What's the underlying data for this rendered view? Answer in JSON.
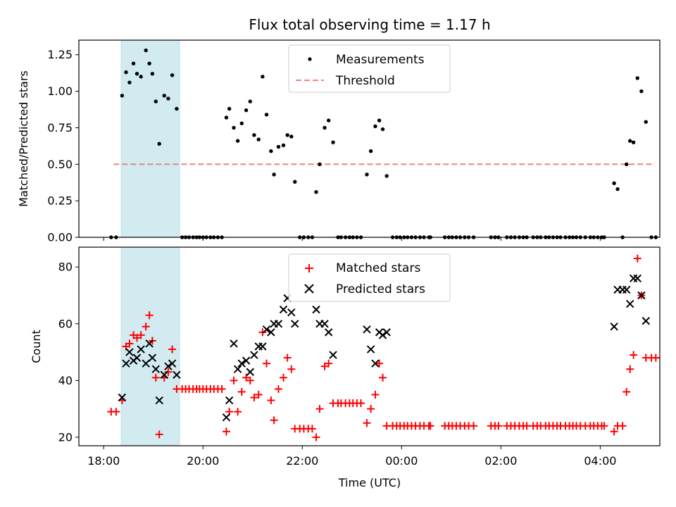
{
  "chart_data": {
    "title": "Flux total observing time = 1.17 h",
    "xlabel": "Time (UTC)",
    "x_tick_labels": [
      "18:00",
      "20:00",
      "22:00",
      "00:00",
      "02:00",
      "04:00"
    ],
    "x_range_hours": [
      17.5,
      29.2
    ],
    "shaded_region_hours": [
      18.35,
      19.53
    ],
    "shaded_color": "#d2ebf1",
    "top": {
      "type": "scatter",
      "ylabel": "Matched/Predicted stars",
      "ylim": [
        0,
        1.35
      ],
      "y_ticks": [
        "0.00",
        "0.25",
        "0.50",
        "0.75",
        "1.00",
        "1.25"
      ],
      "legend": [
        "Measurements",
        "Threshold"
      ],
      "threshold": {
        "value": 0.5,
        "x_range_hours": [
          18.2,
          29.1
        ],
        "color": "#f08080"
      },
      "measurements": [
        [
          18.15,
          0
        ],
        [
          18.25,
          0
        ],
        [
          18.37,
          0.97
        ],
        [
          18.45,
          1.13
        ],
        [
          18.52,
          1.06
        ],
        [
          18.6,
          1.19
        ],
        [
          18.67,
          1.12
        ],
        [
          18.75,
          1.1
        ],
        [
          18.85,
          1.28
        ],
        [
          18.92,
          1.19
        ],
        [
          18.98,
          1.12
        ],
        [
          19.05,
          0.93
        ],
        [
          19.12,
          0.64
        ],
        [
          19.22,
          0.97
        ],
        [
          19.3,
          0.95
        ],
        [
          19.38,
          1.11
        ],
        [
          19.47,
          0.88
        ],
        [
          19.58,
          0
        ],
        [
          19.65,
          0
        ],
        [
          19.72,
          0
        ],
        [
          19.8,
          0
        ],
        [
          19.87,
          0
        ],
        [
          19.93,
          0
        ],
        [
          20.0,
          0
        ],
        [
          20.07,
          0
        ],
        [
          20.15,
          0
        ],
        [
          20.22,
          0
        ],
        [
          20.3,
          0
        ],
        [
          20.38,
          0
        ],
        [
          20.47,
          0.82
        ],
        [
          20.53,
          0.88
        ],
        [
          20.62,
          0.75
        ],
        [
          20.7,
          0.66
        ],
        [
          20.78,
          0.78
        ],
        [
          20.87,
          0.87
        ],
        [
          20.95,
          0.93
        ],
        [
          21.03,
          0.7
        ],
        [
          21.12,
          0.67
        ],
        [
          21.2,
          1.1
        ],
        [
          21.28,
          0.84
        ],
        [
          21.37,
          0.59
        ],
        [
          21.43,
          0.43
        ],
        [
          21.52,
          0.62
        ],
        [
          21.62,
          0.63
        ],
        [
          21.7,
          0.7
        ],
        [
          21.78,
          0.69
        ],
        [
          21.85,
          0.38
        ],
        [
          21.95,
          0
        ],
        [
          22.03,
          0
        ],
        [
          22.12,
          0
        ],
        [
          22.2,
          0
        ],
        [
          22.28,
          0.31
        ],
        [
          22.35,
          0.5
        ],
        [
          22.45,
          0.75
        ],
        [
          22.53,
          0.8
        ],
        [
          22.62,
          0.65
        ],
        [
          22.72,
          0
        ],
        [
          22.78,
          0
        ],
        [
          22.87,
          0
        ],
        [
          22.95,
          0
        ],
        [
          23.02,
          0
        ],
        [
          23.1,
          0
        ],
        [
          23.18,
          0
        ],
        [
          23.3,
          0.43
        ],
        [
          23.38,
          0.59
        ],
        [
          23.47,
          0.76
        ],
        [
          23.55,
          0.8
        ],
        [
          23.62,
          0.74
        ],
        [
          23.7,
          0.42
        ],
        [
          23.82,
          0
        ],
        [
          23.9,
          0
        ],
        [
          23.97,
          0
        ],
        [
          24.05,
          0
        ],
        [
          24.12,
          0
        ],
        [
          24.2,
          0
        ],
        [
          24.28,
          0
        ],
        [
          24.37,
          0
        ],
        [
          24.45,
          0
        ],
        [
          24.55,
          0
        ],
        [
          24.58,
          0
        ],
        [
          24.87,
          0
        ],
        [
          24.95,
          0
        ],
        [
          25.02,
          0
        ],
        [
          25.1,
          0
        ],
        [
          25.18,
          0
        ],
        [
          25.27,
          0
        ],
        [
          25.35,
          0
        ],
        [
          25.45,
          0
        ],
        [
          25.8,
          0
        ],
        [
          25.88,
          0
        ],
        [
          25.95,
          0
        ],
        [
          26.12,
          0
        ],
        [
          26.2,
          0
        ],
        [
          26.28,
          0
        ],
        [
          26.37,
          0
        ],
        [
          26.45,
          0
        ],
        [
          26.52,
          0
        ],
        [
          26.65,
          0
        ],
        [
          26.73,
          0
        ],
        [
          26.8,
          0
        ],
        [
          26.9,
          0
        ],
        [
          26.97,
          0
        ],
        [
          27.05,
          0
        ],
        [
          27.13,
          0
        ],
        [
          27.2,
          0
        ],
        [
          27.3,
          0
        ],
        [
          27.38,
          0
        ],
        [
          27.45,
          0
        ],
        [
          27.52,
          0
        ],
        [
          27.6,
          0
        ],
        [
          27.7,
          0
        ],
        [
          27.8,
          0
        ],
        [
          27.87,
          0
        ],
        [
          27.95,
          0
        ],
        [
          28.03,
          0
        ],
        [
          28.08,
          0
        ],
        [
          28.28,
          0.37
        ],
        [
          28.35,
          0.33
        ],
        [
          28.45,
          0
        ],
        [
          28.53,
          0.5
        ],
        [
          28.6,
          0.66
        ],
        [
          28.67,
          0.65
        ],
        [
          28.75,
          1.09
        ],
        [
          28.83,
          1.0
        ],
        [
          28.92,
          0.79
        ],
        [
          29.03,
          0
        ],
        [
          29.12,
          0
        ]
      ]
    },
    "bottom": {
      "type": "scatter",
      "ylabel": "Count",
      "ylim": [
        17,
        87
      ],
      "y_ticks": [
        "20",
        "40",
        "60",
        "80"
      ],
      "legend": [
        "Matched stars",
        "Predicted stars"
      ],
      "matched_color": "#ff0000",
      "predicted_color": "#000000",
      "matched": [
        [
          18.15,
          29
        ],
        [
          18.25,
          29
        ],
        [
          18.37,
          33
        ],
        [
          18.45,
          52
        ],
        [
          18.52,
          53
        ],
        [
          18.6,
          56
        ],
        [
          18.67,
          55
        ],
        [
          18.75,
          56
        ],
        [
          18.85,
          59
        ],
        [
          18.92,
          63
        ],
        [
          18.98,
          54
        ],
        [
          19.05,
          41
        ],
        [
          19.12,
          21
        ],
        [
          19.22,
          41
        ],
        [
          19.3,
          43
        ],
        [
          19.38,
          51
        ],
        [
          19.47,
          37
        ],
        [
          19.58,
          37
        ],
        [
          19.65,
          37
        ],
        [
          19.72,
          37
        ],
        [
          19.8,
          37
        ],
        [
          19.87,
          37
        ],
        [
          19.93,
          37
        ],
        [
          20.0,
          37
        ],
        [
          20.07,
          37
        ],
        [
          20.15,
          37
        ],
        [
          20.22,
          37
        ],
        [
          20.3,
          37
        ],
        [
          20.38,
          37
        ],
        [
          20.47,
          22
        ],
        [
          20.53,
          29
        ],
        [
          20.62,
          40
        ],
        [
          20.7,
          29
        ],
        [
          20.78,
          36
        ],
        [
          20.87,
          41
        ],
        [
          20.95,
          40
        ],
        [
          21.03,
          34
        ],
        [
          21.12,
          35
        ],
        [
          21.2,
          57
        ],
        [
          21.28,
          46
        ],
        [
          21.37,
          33
        ],
        [
          21.43,
          26
        ],
        [
          21.52,
          37
        ],
        [
          21.62,
          41
        ],
        [
          21.7,
          48
        ],
        [
          21.78,
          44
        ],
        [
          21.85,
          23
        ],
        [
          21.95,
          23
        ],
        [
          22.03,
          23
        ],
        [
          22.12,
          23
        ],
        [
          22.2,
          23
        ],
        [
          22.28,
          20
        ],
        [
          22.35,
          30
        ],
        [
          22.45,
          45
        ],
        [
          22.53,
          46
        ],
        [
          22.62,
          32
        ],
        [
          22.72,
          32
        ],
        [
          22.78,
          32
        ],
        [
          22.87,
          32
        ],
        [
          22.95,
          32
        ],
        [
          23.02,
          32
        ],
        [
          23.1,
          32
        ],
        [
          23.18,
          32
        ],
        [
          23.3,
          25
        ],
        [
          23.38,
          30
        ],
        [
          23.47,
          35
        ],
        [
          23.55,
          46
        ],
        [
          23.62,
          41
        ],
        [
          23.7,
          24
        ],
        [
          23.82,
          24
        ],
        [
          23.9,
          24
        ],
        [
          23.97,
          24
        ],
        [
          24.05,
          24
        ],
        [
          24.12,
          24
        ],
        [
          24.2,
          24
        ],
        [
          24.28,
          24
        ],
        [
          24.37,
          24
        ],
        [
          24.45,
          24
        ],
        [
          24.55,
          24
        ],
        [
          24.58,
          24
        ],
        [
          24.87,
          24
        ],
        [
          24.95,
          24
        ],
        [
          25.02,
          24
        ],
        [
          25.1,
          24
        ],
        [
          25.18,
          24
        ],
        [
          25.27,
          24
        ],
        [
          25.35,
          24
        ],
        [
          25.45,
          24
        ],
        [
          25.8,
          24
        ],
        [
          25.88,
          24
        ],
        [
          25.95,
          24
        ],
        [
          26.12,
          24
        ],
        [
          26.2,
          24
        ],
        [
          26.28,
          24
        ],
        [
          26.37,
          24
        ],
        [
          26.45,
          24
        ],
        [
          26.52,
          24
        ],
        [
          26.65,
          24
        ],
        [
          26.73,
          24
        ],
        [
          26.8,
          24
        ],
        [
          26.9,
          24
        ],
        [
          26.97,
          24
        ],
        [
          27.05,
          24
        ],
        [
          27.13,
          24
        ],
        [
          27.2,
          24
        ],
        [
          27.3,
          24
        ],
        [
          27.38,
          24
        ],
        [
          27.45,
          24
        ],
        [
          27.52,
          24
        ],
        [
          27.6,
          24
        ],
        [
          27.7,
          24
        ],
        [
          27.8,
          24
        ],
        [
          27.87,
          24
        ],
        [
          27.95,
          24
        ],
        [
          28.03,
          24
        ],
        [
          28.08,
          24
        ],
        [
          28.28,
          22
        ],
        [
          28.35,
          24
        ],
        [
          28.45,
          24
        ],
        [
          28.53,
          36
        ],
        [
          28.6,
          44
        ],
        [
          28.67,
          49
        ],
        [
          28.75,
          83
        ],
        [
          28.83,
          70
        ],
        [
          28.92,
          48
        ],
        [
          29.03,
          48
        ],
        [
          29.12,
          48
        ]
      ],
      "predicted": [
        [
          18.37,
          34
        ],
        [
          18.45,
          46
        ],
        [
          18.52,
          50
        ],
        [
          18.6,
          47
        ],
        [
          18.67,
          48
        ],
        [
          18.75,
          51
        ],
        [
          18.85,
          46
        ],
        [
          18.92,
          53
        ],
        [
          18.98,
          48
        ],
        [
          19.05,
          44
        ],
        [
          19.12,
          33
        ],
        [
          19.22,
          42
        ],
        [
          19.3,
          45
        ],
        [
          19.38,
          46
        ],
        [
          19.47,
          42
        ],
        [
          20.47,
          27
        ],
        [
          20.53,
          33
        ],
        [
          20.62,
          53
        ],
        [
          20.7,
          44
        ],
        [
          20.78,
          46
        ],
        [
          20.87,
          47
        ],
        [
          20.95,
          43
        ],
        [
          21.03,
          49
        ],
        [
          21.12,
          52
        ],
        [
          21.2,
          52
        ],
        [
          21.28,
          58
        ],
        [
          21.37,
          57
        ],
        [
          21.43,
          60
        ],
        [
          21.52,
          60
        ],
        [
          21.62,
          65
        ],
        [
          21.7,
          69
        ],
        [
          21.78,
          64
        ],
        [
          21.85,
          60
        ],
        [
          22.28,
          65
        ],
        [
          22.35,
          60
        ],
        [
          22.45,
          60
        ],
        [
          22.53,
          57
        ],
        [
          22.62,
          49
        ],
        [
          23.3,
          58
        ],
        [
          23.38,
          51
        ],
        [
          23.47,
          46
        ],
        [
          23.55,
          57
        ],
        [
          23.62,
          56
        ],
        [
          23.7,
          57
        ],
        [
          28.28,
          59
        ],
        [
          28.35,
          72
        ],
        [
          28.45,
          72
        ],
        [
          28.53,
          72
        ],
        [
          28.6,
          67
        ],
        [
          28.67,
          76
        ],
        [
          28.75,
          76
        ],
        [
          28.83,
          70
        ],
        [
          28.92,
          61
        ]
      ]
    }
  }
}
